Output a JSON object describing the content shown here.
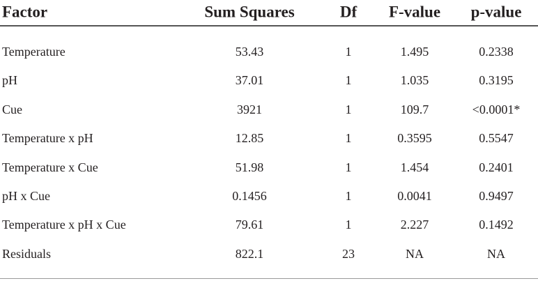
{
  "table": {
    "header": [
      "Factor",
      "Sum Squares",
      "Df",
      "F-value",
      "p-value"
    ],
    "rows": [
      [
        "Temperature",
        "53.43",
        "1",
        "1.495",
        "0.2338"
      ],
      [
        "pH",
        "37.01",
        "1",
        "1.035",
        "0.3195"
      ],
      [
        "Cue",
        "3921",
        "1",
        "109.7",
        "<0.0001*"
      ],
      [
        "Temperature x pH",
        "12.85",
        "1",
        "0.3595",
        "0.5547"
      ],
      [
        "Temperature x Cue",
        "51.98",
        "1",
        "1.454",
        "0.2401"
      ],
      [
        "pH x Cue",
        "0.1456",
        "1",
        "0.0041",
        "0.9497"
      ],
      [
        "Temperature x pH x Cue",
        "79.61",
        "1",
        "2.227",
        "0.1492"
      ],
      [
        "Residuals",
        "822.1",
        "23",
        "NA",
        "NA"
      ]
    ]
  }
}
